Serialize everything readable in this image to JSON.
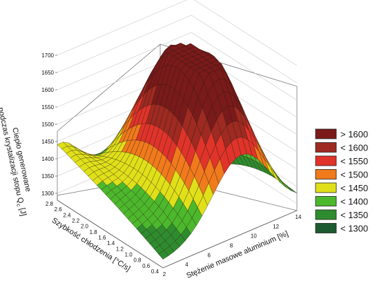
{
  "chart_data": {
    "type": "surface3d",
    "title": "",
    "xlabel": "Stężenie masowe aluminium [%]",
    "ylabel": "Szybkość chłodzenia [°C/s]",
    "zlabel_lines": [
      "Ciepło generowane",
      "podczas krystalizacji stopu Q",
      "[J]"
    ],
    "zlabel_subscript": "c",
    "x_ticks": [
      "2",
      "4",
      "6",
      "8",
      "10",
      "12",
      "14"
    ],
    "y_ticks": [
      "0.4",
      "0.6",
      "0.8",
      "1.0",
      "1.2",
      "1.4",
      "1.6",
      "1.8",
      "2.0",
      "2.2",
      "2.4",
      "2.6",
      "2.8"
    ],
    "z_ticks": [
      "1300",
      "1350",
      "1400",
      "1450",
      "1500",
      "1550",
      "1600",
      "1650",
      "1700"
    ],
    "xlim": [
      2,
      14
    ],
    "ylim": [
      0.4,
      2.8
    ],
    "zlim": [
      1280,
      1710
    ],
    "surface_samples": [
      {
        "x": 2,
        "y": 0.4,
        "z": 1320
      },
      {
        "x": 2,
        "y": 2.8,
        "z": 1460
      },
      {
        "x": 14,
        "y": 2.8,
        "z": 1400
      },
      {
        "x": 14,
        "y": 0.4,
        "z": 1360
      },
      {
        "x": 9,
        "y": 1.6,
        "z": 1650
      },
      {
        "x": 12,
        "y": 2.8,
        "z": 1480
      }
    ],
    "legend": {
      "placement": "right",
      "entries": [
        {
          "label": "> 1600",
          "color": "#7a1a1a"
        },
        {
          "label": "< 1600",
          "color": "#9e2a22"
        },
        {
          "label": "< 1550",
          "color": "#e0332a"
        },
        {
          "label": "< 1500",
          "color": "#f07a1c"
        },
        {
          "label": "< 1450",
          "color": "#e0e01a"
        },
        {
          "label": "< 1400",
          "color": "#4cb82c"
        },
        {
          "label": "< 1350",
          "color": "#2e8c2e"
        },
        {
          "label": "< 1300",
          "color": "#1e5a30"
        }
      ]
    },
    "grid": true
  }
}
